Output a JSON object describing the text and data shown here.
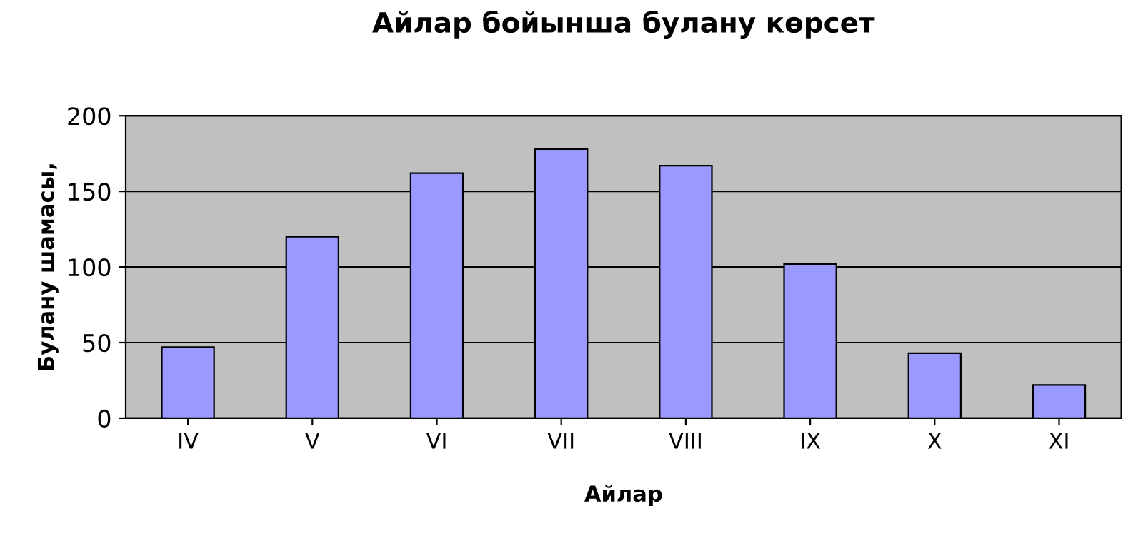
{
  "chart_data": {
    "type": "bar",
    "title": "Айлар бойынша булану көрсет",
    "xlabel": "Айлар",
    "ylabel": "Булану шамасы,",
    "categories": [
      "IV",
      "V",
      "VI",
      "VII",
      "VIII",
      "IX",
      "X",
      "XI"
    ],
    "values": [
      47,
      120,
      162,
      178,
      167,
      102,
      43,
      22
    ],
    "color": "#9999ff",
    "ylim": [
      0,
      200
    ],
    "yticks": [
      0,
      50,
      100,
      150,
      200
    ],
    "grid": "y"
  }
}
